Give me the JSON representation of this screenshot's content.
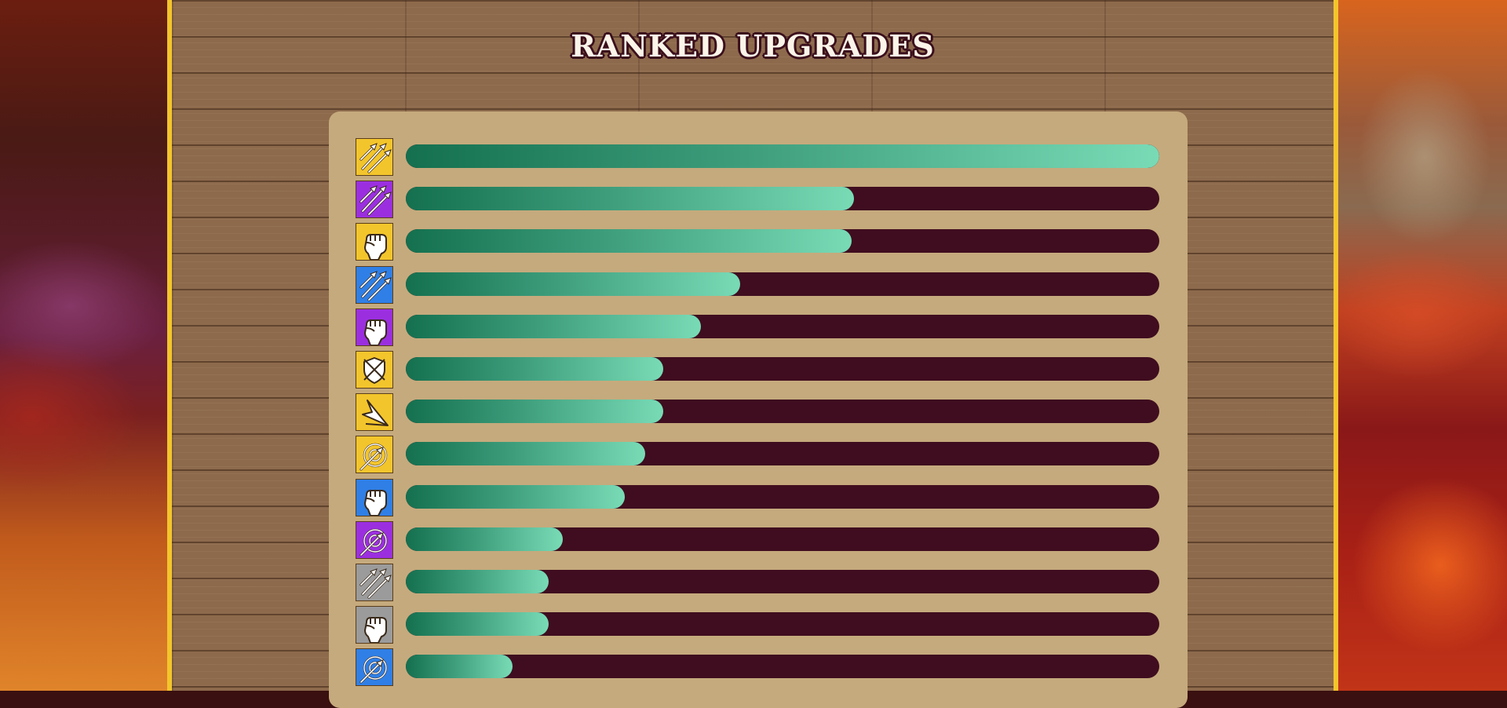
{
  "title": "RANKED UPGRADES",
  "colors": {
    "gold": "#f3c52c",
    "purple": "#9b2fe0",
    "blue": "#2f7fe6",
    "gray": "#9b9b9b",
    "bar_track": "#3f0d1f",
    "bar_fill_start": "#14704f",
    "bar_fill_end": "#78dbb6",
    "panel": "#c5aa7d"
  },
  "upgrades": [
    {
      "icon": "arrows-icon",
      "tier": "gold",
      "progress": 1.0
    },
    {
      "icon": "arrows-icon",
      "tier": "purple",
      "progress": 0.595
    },
    {
      "icon": "fist-icon",
      "tier": "gold",
      "progress": 0.592
    },
    {
      "icon": "arrows-icon",
      "tier": "blue",
      "progress": 0.444
    },
    {
      "icon": "fist-icon",
      "tier": "purple",
      "progress": 0.392
    },
    {
      "icon": "shield-icon",
      "tier": "gold",
      "progress": 0.342
    },
    {
      "icon": "arrowhead-icon",
      "tier": "gold",
      "progress": 0.342
    },
    {
      "icon": "target-icon",
      "tier": "gold",
      "progress": 0.318
    },
    {
      "icon": "fist-icon",
      "tier": "blue",
      "progress": 0.291
    },
    {
      "icon": "target-icon",
      "tier": "purple",
      "progress": 0.208
    },
    {
      "icon": "arrows-icon",
      "tier": "gray",
      "progress": 0.19
    },
    {
      "icon": "fist-icon",
      "tier": "gray",
      "progress": 0.19
    },
    {
      "icon": "target-icon",
      "tier": "blue",
      "progress": 0.142
    }
  ]
}
